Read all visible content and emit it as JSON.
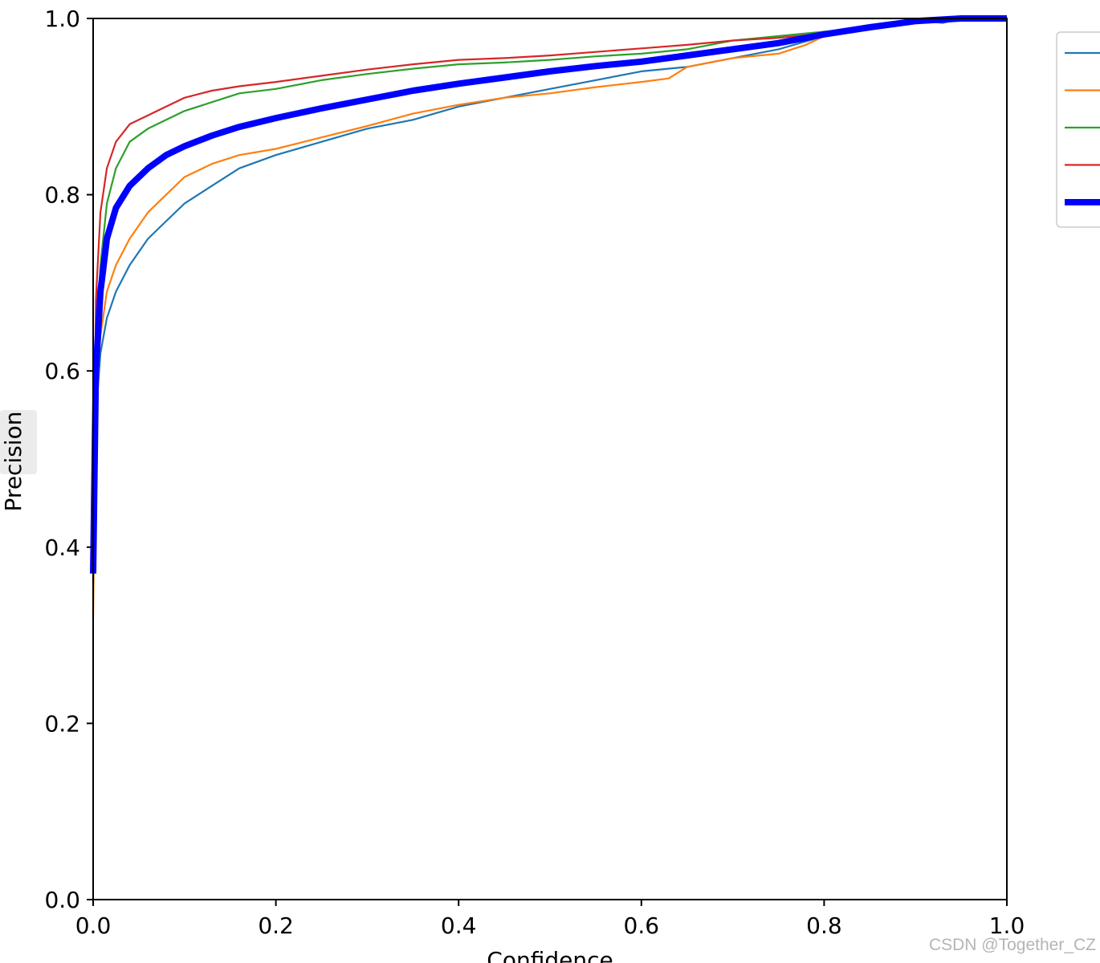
{
  "chart_data": {
    "type": "line",
    "xlabel": "Confidence",
    "ylabel": "Precision",
    "xlim": [
      0,
      1
    ],
    "ylim": [
      0,
      1
    ],
    "xticks": [
      "0.0",
      "0.2",
      "0.4",
      "0.6",
      "0.8",
      "1.0"
    ],
    "yticks": [
      "0.0",
      "0.2",
      "0.4",
      "0.6",
      "0.8",
      "1.0"
    ],
    "grid": false,
    "legend_position": "outside-top-right",
    "series": [
      {
        "color": "#1f77b4",
        "line_style": "thin",
        "points": [
          [
            0.0,
            0.36
          ],
          [
            0.003,
            0.55
          ],
          [
            0.008,
            0.62
          ],
          [
            0.015,
            0.66
          ],
          [
            0.025,
            0.69
          ],
          [
            0.04,
            0.72
          ],
          [
            0.06,
            0.75
          ],
          [
            0.08,
            0.77
          ],
          [
            0.1,
            0.79
          ],
          [
            0.13,
            0.81
          ],
          [
            0.16,
            0.83
          ],
          [
            0.2,
            0.845
          ],
          [
            0.25,
            0.86
          ],
          [
            0.3,
            0.875
          ],
          [
            0.35,
            0.885
          ],
          [
            0.4,
            0.9
          ],
          [
            0.45,
            0.91
          ],
          [
            0.5,
            0.92
          ],
          [
            0.55,
            0.93
          ],
          [
            0.6,
            0.94
          ],
          [
            0.65,
            0.945
          ],
          [
            0.7,
            0.955
          ],
          [
            0.75,
            0.965
          ],
          [
            0.8,
            0.98
          ],
          [
            0.85,
            0.99
          ],
          [
            0.9,
            0.998
          ],
          [
            0.93,
            0.995
          ],
          [
            0.95,
            1.0
          ],
          [
            1.0,
            1.0
          ]
        ]
      },
      {
        "color": "#ff7f0e",
        "line_style": "thin",
        "points": [
          [
            0.0,
            0.32
          ],
          [
            0.003,
            0.57
          ],
          [
            0.008,
            0.64
          ],
          [
            0.015,
            0.69
          ],
          [
            0.025,
            0.72
          ],
          [
            0.04,
            0.75
          ],
          [
            0.06,
            0.78
          ],
          [
            0.08,
            0.8
          ],
          [
            0.1,
            0.82
          ],
          [
            0.13,
            0.835
          ],
          [
            0.16,
            0.845
          ],
          [
            0.2,
            0.852
          ],
          [
            0.25,
            0.865
          ],
          [
            0.3,
            0.878
          ],
          [
            0.35,
            0.892
          ],
          [
            0.4,
            0.902
          ],
          [
            0.45,
            0.91
          ],
          [
            0.5,
            0.915
          ],
          [
            0.55,
            0.922
          ],
          [
            0.6,
            0.928
          ],
          [
            0.63,
            0.932
          ],
          [
            0.65,
            0.945
          ],
          [
            0.7,
            0.955
          ],
          [
            0.75,
            0.96
          ],
          [
            0.78,
            0.97
          ],
          [
            0.8,
            0.98
          ],
          [
            0.85,
            0.99
          ],
          [
            0.9,
            0.998
          ],
          [
            0.95,
            1.0
          ],
          [
            1.0,
            1.0
          ]
        ]
      },
      {
        "color": "#2ca02c",
        "line_style": "thin",
        "points": [
          [
            0.0,
            0.36
          ],
          [
            0.003,
            0.62
          ],
          [
            0.008,
            0.72
          ],
          [
            0.015,
            0.79
          ],
          [
            0.025,
            0.83
          ],
          [
            0.04,
            0.86
          ],
          [
            0.06,
            0.875
          ],
          [
            0.08,
            0.885
          ],
          [
            0.1,
            0.895
          ],
          [
            0.13,
            0.905
          ],
          [
            0.16,
            0.915
          ],
          [
            0.2,
            0.92
          ],
          [
            0.25,
            0.93
          ],
          [
            0.3,
            0.937
          ],
          [
            0.35,
            0.943
          ],
          [
            0.4,
            0.948
          ],
          [
            0.45,
            0.95
          ],
          [
            0.5,
            0.953
          ],
          [
            0.55,
            0.957
          ],
          [
            0.6,
            0.96
          ],
          [
            0.65,
            0.965
          ],
          [
            0.7,
            0.975
          ],
          [
            0.75,
            0.98
          ],
          [
            0.8,
            0.985
          ],
          [
            0.85,
            0.99
          ],
          [
            0.9,
            0.998
          ],
          [
            0.95,
            1.0
          ],
          [
            1.0,
            1.0
          ]
        ]
      },
      {
        "color": "#d62728",
        "line_style": "thin",
        "points": [
          [
            0.0,
            0.37
          ],
          [
            0.003,
            0.68
          ],
          [
            0.008,
            0.78
          ],
          [
            0.015,
            0.83
          ],
          [
            0.025,
            0.86
          ],
          [
            0.04,
            0.88
          ],
          [
            0.06,
            0.89
          ],
          [
            0.08,
            0.9
          ],
          [
            0.1,
            0.91
          ],
          [
            0.13,
            0.918
          ],
          [
            0.16,
            0.923
          ],
          [
            0.2,
            0.928
          ],
          [
            0.25,
            0.935
          ],
          [
            0.3,
            0.942
          ],
          [
            0.35,
            0.948
          ],
          [
            0.4,
            0.953
          ],
          [
            0.45,
            0.955
          ],
          [
            0.5,
            0.958
          ],
          [
            0.55,
            0.962
          ],
          [
            0.6,
            0.966
          ],
          [
            0.65,
            0.97
          ],
          [
            0.7,
            0.975
          ],
          [
            0.75,
            0.978
          ],
          [
            0.8,
            0.983
          ],
          [
            0.85,
            0.99
          ],
          [
            0.9,
            0.998
          ],
          [
            0.95,
            1.0
          ],
          [
            1.0,
            1.0
          ]
        ]
      },
      {
        "color": "#0000ff",
        "line_style": "thick",
        "points": [
          [
            0.0,
            0.37
          ],
          [
            0.003,
            0.6
          ],
          [
            0.008,
            0.69
          ],
          [
            0.015,
            0.75
          ],
          [
            0.025,
            0.785
          ],
          [
            0.04,
            0.81
          ],
          [
            0.06,
            0.83
          ],
          [
            0.08,
            0.845
          ],
          [
            0.1,
            0.855
          ],
          [
            0.13,
            0.867
          ],
          [
            0.16,
            0.877
          ],
          [
            0.2,
            0.887
          ],
          [
            0.25,
            0.898
          ],
          [
            0.3,
            0.908
          ],
          [
            0.35,
            0.918
          ],
          [
            0.4,
            0.926
          ],
          [
            0.45,
            0.933
          ],
          [
            0.5,
            0.94
          ],
          [
            0.55,
            0.946
          ],
          [
            0.6,
            0.951
          ],
          [
            0.65,
            0.958
          ],
          [
            0.7,
            0.965
          ],
          [
            0.75,
            0.972
          ],
          [
            0.8,
            0.982
          ],
          [
            0.85,
            0.99
          ],
          [
            0.9,
            0.997
          ],
          [
            0.95,
            1.0
          ],
          [
            1.0,
            1.0
          ]
        ]
      }
    ]
  },
  "watermark": "CSDN @Together_CZ"
}
